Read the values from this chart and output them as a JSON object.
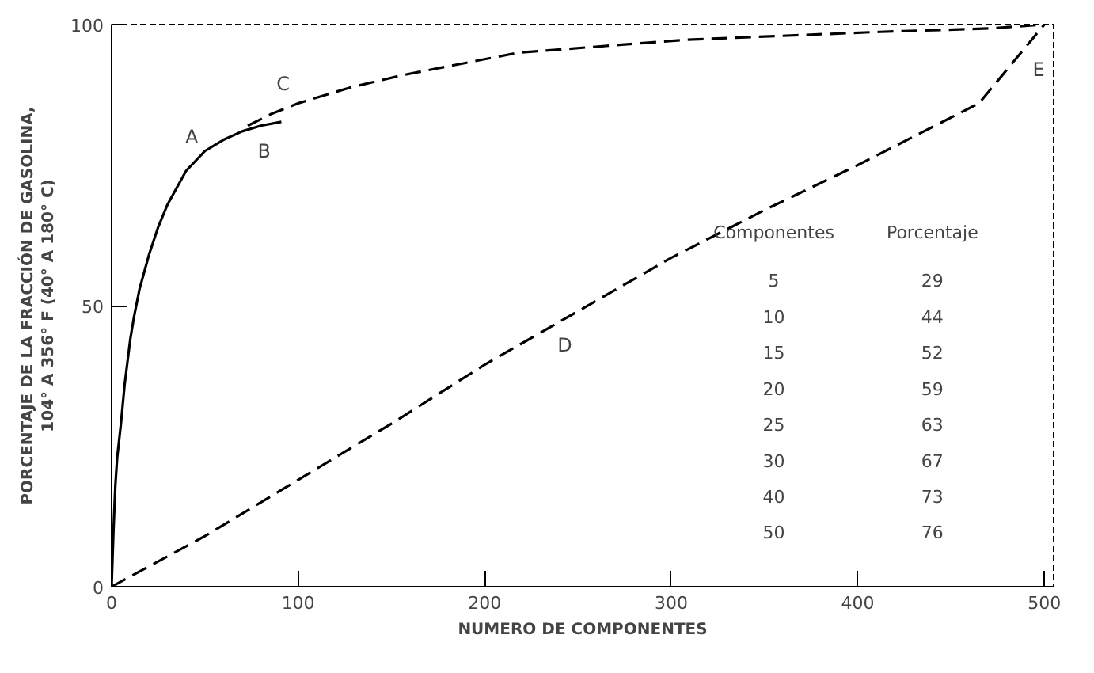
{
  "chart_data": {
    "type": "line",
    "xlabel": "NUMERO DE COMPONENTES",
    "ylabel": "PORCENTAJE DE LA FRACCIÓN DE GASOLINA,\n104° A 356° F (40° A 180° C)",
    "xlim": [
      0,
      505
    ],
    "ylim": [
      0,
      100
    ],
    "xticks": [
      0,
      100,
      200,
      300,
      400,
      500
    ],
    "yticks": [
      0,
      50,
      100
    ],
    "grid": false,
    "marker": "none",
    "series": [
      {
        "color": "#000000",
        "line_style": "solid",
        "x": [
          0,
          1,
          2,
          3,
          5,
          7,
          10,
          12,
          15,
          20,
          25,
          30,
          40,
          50,
          60,
          70,
          80,
          91
        ],
        "values": [
          0,
          10,
          18,
          23,
          29,
          36,
          44,
          48,
          53,
          59,
          64,
          68,
          74,
          77.5,
          79.5,
          81,
          82,
          82.7
        ]
      },
      {
        "color": "#000000",
        "line_style": "dashed",
        "x": [
          73,
          85,
          100,
          128,
          156,
          218,
          308,
          412,
          470,
          500
        ],
        "values": [
          82,
          84,
          86,
          88.8,
          91,
          95,
          97.3,
          98.7,
          99.3,
          100
        ]
      },
      {
        "color": "#000000",
        "line_style": "dashed",
        "x": [
          0,
          50,
          100,
          150,
          200,
          250,
          300,
          350,
          400,
          465,
          485,
          500
        ],
        "values": [
          0,
          9,
          19,
          29,
          39.5,
          49,
          58.5,
          67,
          75,
          86,
          94,
          100
        ]
      }
    ],
    "annotations": [
      "A",
      "B",
      "C",
      "D",
      "E",
      "Componentes",
      "Porcentaje",
      "5",
      "29",
      "10",
      "44",
      "15",
      "52",
      "20",
      "59",
      "25",
      "63",
      "30",
      "67",
      "40",
      "73",
      "50",
      "76"
    ]
  }
}
